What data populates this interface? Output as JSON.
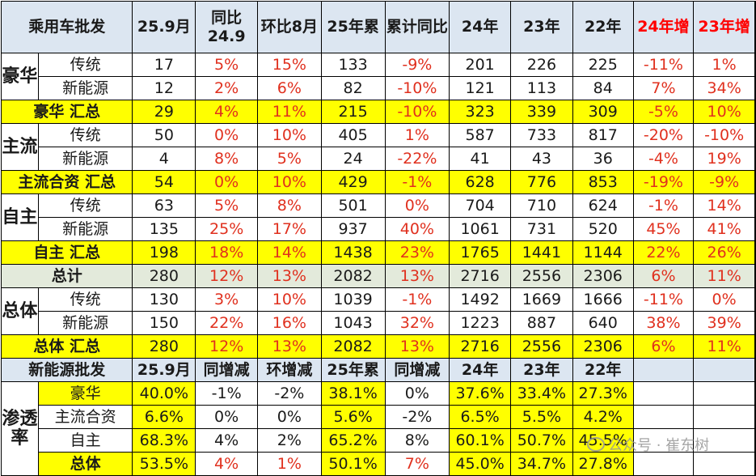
{
  "header": [
    "乘用车批发",
    "25.9月",
    "同比24.9",
    "环比8月",
    "25年累",
    "累计同比",
    "24年",
    "23年",
    "22年",
    "24年增",
    "23年增"
  ],
  "groups": [
    {
      "label": "豪华",
      "rows": [
        {
          "type": "传统",
          "cells": [
            "17",
            "5%",
            "15%",
            "133",
            "-9%",
            "201",
            "226",
            "225",
            "-11%",
            "1%"
          ]
        },
        {
          "type": "新能源",
          "cells": [
            "12",
            "2%",
            "6%",
            "82",
            "-10%",
            "121",
            "113",
            "84",
            "7%",
            "34%"
          ]
        }
      ],
      "total": {
        "label": "豪华 汇总",
        "cells": [
          "29",
          "4%",
          "11%",
          "215",
          "-10%",
          "323",
          "339",
          "309",
          "-5%",
          "10%"
        ]
      }
    },
    {
      "label": "主流",
      "rows": [
        {
          "type": "传统",
          "cells": [
            "50",
            "0%",
            "10%",
            "405",
            "1%",
            "587",
            "733",
            "817",
            "-20%",
            "-10%"
          ]
        },
        {
          "type": "新能源",
          "cells": [
            "4",
            "8%",
            "5%",
            "24",
            "-22%",
            "41",
            "43",
            "36",
            "-4%",
            "19%"
          ]
        }
      ],
      "total": {
        "label": "主流合资 汇总",
        "cells": [
          "54",
          "0%",
          "10%",
          "429",
          "-1%",
          "628",
          "776",
          "853",
          "-19%",
          "-9%"
        ]
      }
    },
    {
      "label": "自主",
      "rows": [
        {
          "type": "传统",
          "cells": [
            "63",
            "5%",
            "8%",
            "501",
            "0%",
            "704",
            "710",
            "624",
            "-1%",
            "14%"
          ]
        },
        {
          "type": "新能源",
          "cells": [
            "135",
            "25%",
            "17%",
            "937",
            "40%",
            "1061",
            "731",
            "520",
            "45%",
            "41%"
          ]
        }
      ],
      "total": {
        "label": "自主 汇总",
        "cells": [
          "198",
          "18%",
          "14%",
          "1438",
          "23%",
          "1765",
          "1441",
          "1144",
          "22%",
          "26%"
        ]
      }
    }
  ],
  "grand_total": {
    "label": "总计",
    "cells": [
      "280",
      "12%",
      "13%",
      "2082",
      "13%",
      "2716",
      "2556",
      "2306",
      "6%",
      "11%"
    ]
  },
  "overall": {
    "label": "总体",
    "rows": [
      {
        "type": "传统",
        "cells": [
          "130",
          "3%",
          "10%",
          "1039",
          "-1%",
          "1492",
          "1669",
          "1666",
          "-11%",
          "0%"
        ]
      },
      {
        "type": "新能源",
        "cells": [
          "150",
          "22%",
          "16%",
          "1043",
          "32%",
          "1223",
          "887",
          "640",
          "38%",
          "39%"
        ]
      }
    ],
    "total": {
      "label": "总体 汇总",
      "cells": [
        "280",
        "12%",
        "13%",
        "2082",
        "13%",
        "2716",
        "2556",
        "2306",
        "6%",
        "11%"
      ]
    }
  },
  "nev_header": [
    "新能源批发",
    "25.9月",
    "同增减",
    "环增减",
    "25年累",
    "同增减",
    "24年",
    "23年",
    "22年"
  ],
  "penetration": {
    "label": "渗透率",
    "rows": [
      {
        "type": "豪华",
        "cells": [
          "40.0%",
          "-1%",
          "-2%",
          "38.1%",
          "0%",
          "37.6%",
          "33.4%",
          "27.3%"
        ]
      },
      {
        "type": "主流合资",
        "cells": [
          "6.6%",
          "0%",
          "0%",
          "5.6%",
          "-2%",
          "6.5%",
          "5.5%",
          "4.2%"
        ]
      },
      {
        "type": "自主",
        "cells": [
          "68.3%",
          "4%",
          "2%",
          "65.2%",
          "8%",
          "60.1%",
          "50.7%",
          "45.5%"
        ]
      },
      {
        "type": "总体",
        "cells": [
          "53.5%",
          "4%",
          "1%",
          "50.1%",
          "7%",
          "45.0%",
          "34.7%",
          "27.8%"
        ]
      }
    ]
  },
  "watermark": "公众号 · 崔东树",
  "colors": {
    "header_bg": "#dce6f1",
    "summary_bg": "#ffff00",
    "grand_total_bg": "#e3eadb",
    "pct_red": "#e0301e"
  }
}
